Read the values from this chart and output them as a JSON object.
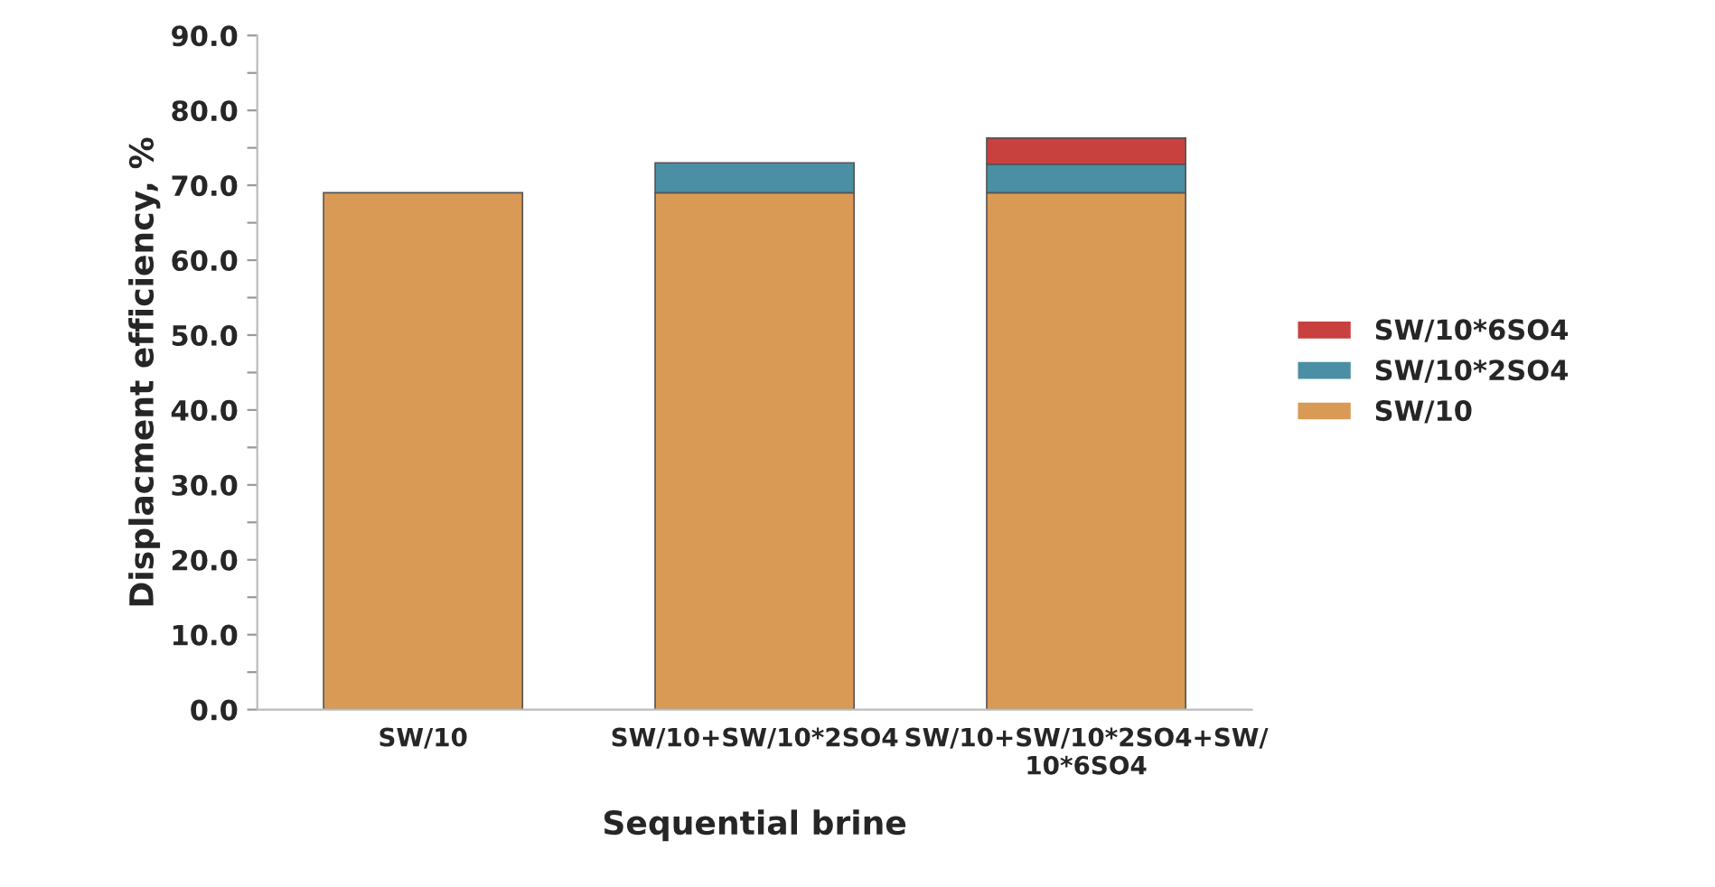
{
  "chart_data": {
    "type": "bar",
    "stacked": true,
    "xlabel": "Sequential brine",
    "ylabel": "Displacment efficiency, %",
    "categories": [
      "SW/10",
      "SW/10+SW/10*2SO4",
      "SW/10+SW/10*2SO4+SW/\n10*6SO4"
    ],
    "series": [
      {
        "name": "SW/10",
        "color": "#d99a55",
        "values": [
          69.0,
          69.0,
          69.0
        ]
      },
      {
        "name": "SW/10*2SO4",
        "color": "#4a8fa3",
        "values": [
          null,
          4.0,
          3.8
        ]
      },
      {
        "name": "SW/10*6SO4",
        "color": "#c8413f",
        "values": [
          null,
          null,
          3.5
        ]
      }
    ],
    "ylim": [
      0,
      90
    ],
    "yticks": [
      {
        "value": 0,
        "label": "0.0"
      },
      {
        "value": 5,
        "label": null
      },
      {
        "value": 10,
        "label": "10.0"
      },
      {
        "value": 15,
        "label": null
      },
      {
        "value": 20,
        "label": "20.0"
      },
      {
        "value": 25,
        "label": null
      },
      {
        "value": 30,
        "label": "30.0"
      },
      {
        "value": 35,
        "label": null
      },
      {
        "value": 40,
        "label": "40.0"
      },
      {
        "value": 45,
        "label": null
      },
      {
        "value": 50,
        "label": "50.0"
      },
      {
        "value": 55,
        "label": null
      },
      {
        "value": 60,
        "label": "60.0"
      },
      {
        "value": 65,
        "label": null
      },
      {
        "value": 70,
        "label": "70.0"
      },
      {
        "value": 75,
        "label": null
      },
      {
        "value": 80,
        "label": "80.0"
      },
      {
        "value": 85,
        "label": null
      },
      {
        "value": 90,
        "label": "90.0"
      }
    ],
    "grid": false,
    "legend": "right"
  }
}
